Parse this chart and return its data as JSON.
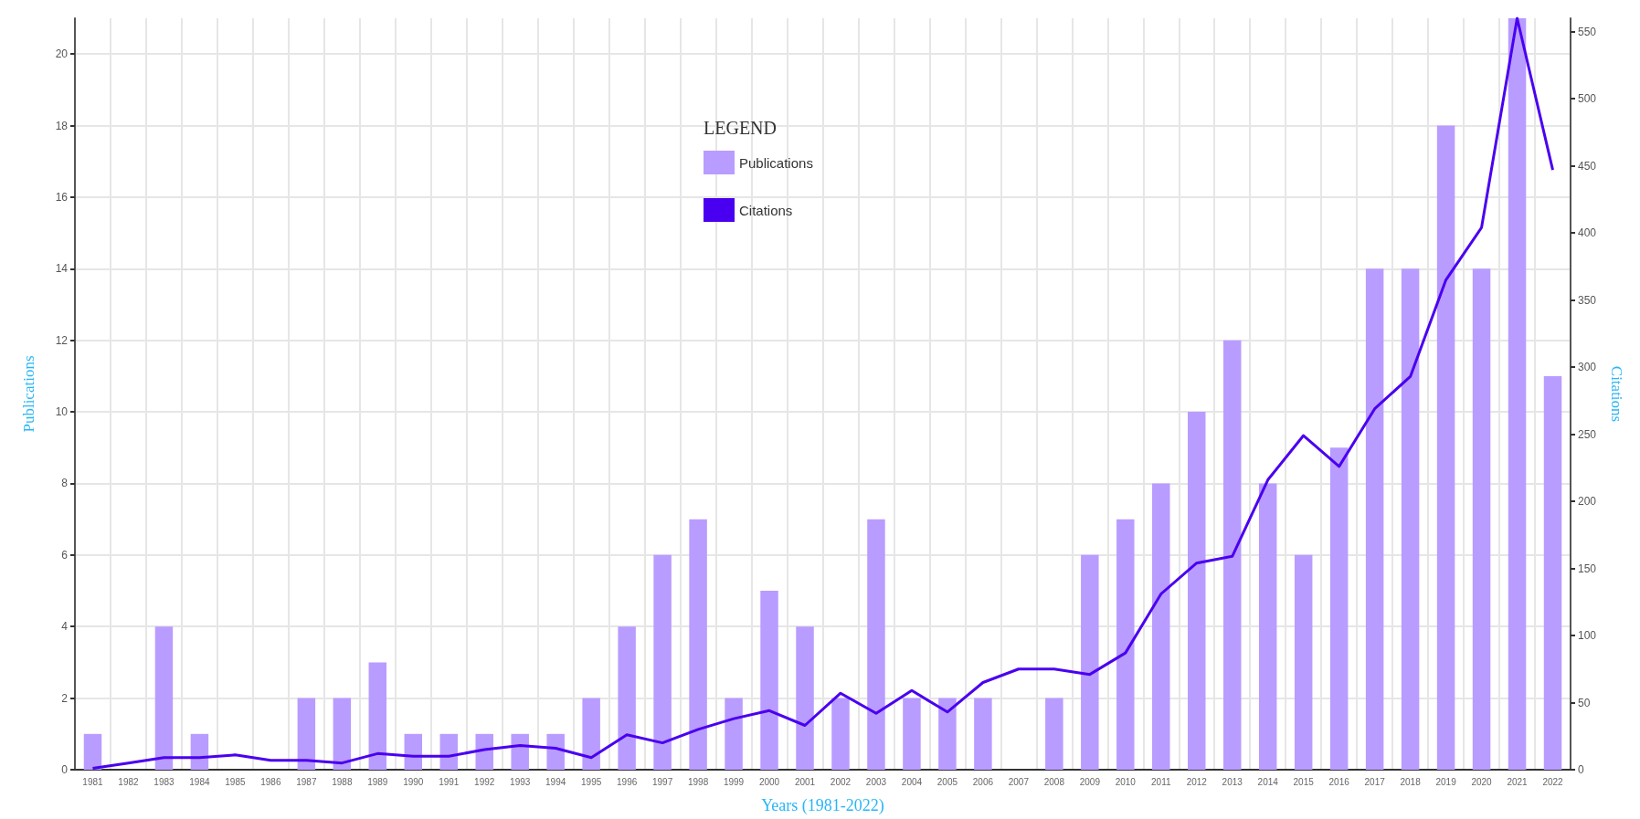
{
  "chart_data": {
    "type": "bar",
    "xlabel": "Years (1981-2022)",
    "ylabel": "Publications",
    "y2label": "Citations",
    "legend_title": "LEGEND",
    "categories": [
      "1981",
      "1982",
      "1983",
      "1984",
      "1985",
      "1986",
      "1987",
      "1988",
      "1989",
      "1990",
      "1991",
      "1992",
      "1993",
      "1994",
      "1995",
      "1996",
      "1997",
      "1998",
      "1999",
      "2000",
      "2001",
      "2002",
      "2003",
      "2004",
      "2005",
      "2006",
      "2007",
      "2008",
      "2009",
      "2010",
      "2011",
      "2012",
      "2013",
      "2014",
      "2015",
      "2016",
      "2017",
      "2018",
      "2019",
      "2020",
      "2021",
      "2022"
    ],
    "series": [
      {
        "name": "Publications",
        "color": "#b99cff",
        "values": [
          1,
          0,
          4,
          1,
          0,
          0,
          2,
          2,
          3,
          1,
          1,
          1,
          1,
          1,
          2,
          4,
          6,
          7,
          2,
          5,
          4,
          2,
          7,
          2,
          2,
          2,
          0,
          2,
          6,
          7,
          8,
          10,
          12,
          8,
          6,
          9,
          14,
          14,
          18,
          14,
          21,
          11
        ]
      },
      {
        "name": "Citations",
        "type": "line",
        "axis": "y2",
        "color": "#4a00f0",
        "values": [
          1,
          5,
          9,
          9,
          11,
          7,
          7,
          5,
          12,
          10,
          10,
          15,
          18,
          16,
          9,
          26,
          20,
          30,
          38,
          44,
          33,
          57,
          42,
          59,
          43,
          65,
          75,
          75,
          71,
          87,
          131,
          154,
          159,
          216,
          249,
          226,
          269,
          293,
          365,
          404,
          560,
          447
        ]
      }
    ],
    "ylim": [
      0,
      21
    ],
    "yticks": [
      0,
      2,
      4,
      6,
      8,
      10,
      12,
      14,
      16,
      18,
      20
    ],
    "y2lim": [
      0,
      560
    ],
    "y2ticks": [
      0,
      50,
      100,
      150,
      200,
      250,
      300,
      350,
      400,
      450,
      500,
      550
    ],
    "grid": true,
    "legend": "top",
    "marker": "none"
  }
}
